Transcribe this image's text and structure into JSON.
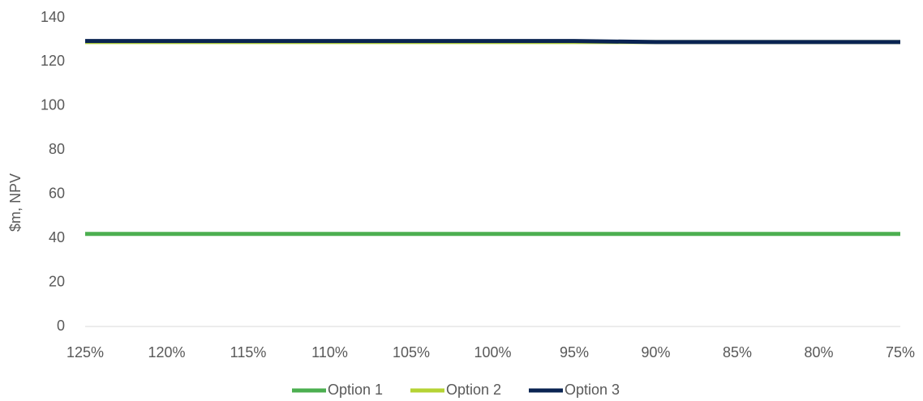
{
  "chart_data": {
    "type": "line",
    "y_label": "$m, NPV",
    "categories": [
      "125%",
      "120%",
      "115%",
      "110%",
      "105%",
      "100%",
      "95%",
      "90%",
      "85%",
      "80%",
      "75%"
    ],
    "series": [
      {
        "name": "Option 1",
        "color": "#4caf50",
        "values": [
          42,
          42,
          42,
          42,
          42,
          42,
          42,
          42,
          42,
          42,
          42
        ]
      },
      {
        "name": "Option 2",
        "color": "#b5d334",
        "values": [
          129,
          129,
          129,
          129,
          129,
          129,
          129,
          129,
          129,
          129,
          129
        ]
      },
      {
        "name": "Option 3",
        "color": "#0a2452",
        "values": [
          129.5,
          129.5,
          129.5,
          129.5,
          129.5,
          129.5,
          129.5,
          129,
          129,
          129,
          129
        ]
      }
    ],
    "ylim": [
      0,
      140
    ],
    "yticks": [
      0,
      20,
      40,
      60,
      80,
      100,
      120,
      140
    ],
    "grid": false,
    "legend": "bottom"
  }
}
